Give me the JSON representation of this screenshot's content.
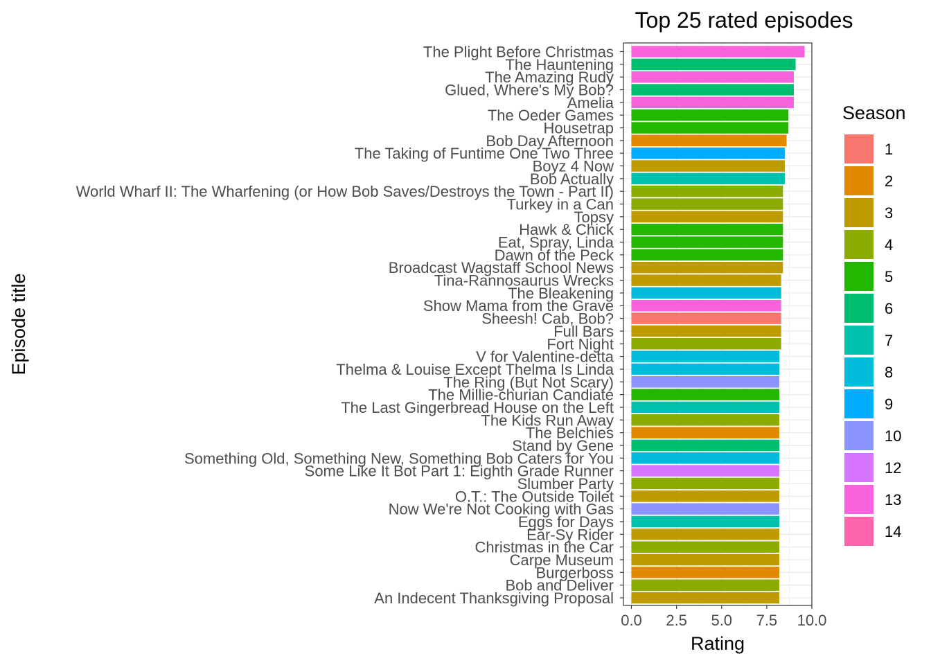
{
  "chart_data": {
    "type": "bar",
    "orientation": "horizontal",
    "title": "Top 25 rated episodes",
    "xlabel": "Rating",
    "ylabel": "Episode title",
    "xlim": [
      0,
      10
    ],
    "x_ticks": [
      "0.0",
      "2.5",
      "5.0",
      "7.5",
      "10.0"
    ],
    "grid": true,
    "legend_title": "Season",
    "legend_position": "right",
    "seasons": [
      "1",
      "2",
      "3",
      "4",
      "5",
      "6",
      "7",
      "8",
      "9",
      "10",
      "12",
      "13",
      "14"
    ],
    "season_colors": [
      "#F8766D",
      "#E18A00",
      "#BE9C00",
      "#8CAB00",
      "#24B700",
      "#00BE70",
      "#00C1AB",
      "#00BBDA",
      "#00ACFC",
      "#8B93FF",
      "#D575FE",
      "#F962DD",
      "#FF65AC"
    ],
    "bars": [
      {
        "title": "The Plight Before Christmas",
        "rating": 9.6,
        "season": "13"
      },
      {
        "title": "The Hauntening",
        "rating": 9.1,
        "season": "6"
      },
      {
        "title": "The Amazing Rudy",
        "rating": 9.0,
        "season": "13"
      },
      {
        "title": "Glued, Where's My Bob?",
        "rating": 9.0,
        "season": "6"
      },
      {
        "title": "Amelia",
        "rating": 9.0,
        "season": "13"
      },
      {
        "title": "The Oeder Games",
        "rating": 8.7,
        "season": "5"
      },
      {
        "title": "Housetrap",
        "rating": 8.7,
        "season": "5"
      },
      {
        "title": "Bob Day Afternoon",
        "rating": 8.6,
        "season": "2"
      },
      {
        "title": "The Taking of Funtime One Two Three",
        "rating": 8.5,
        "season": "9"
      },
      {
        "title": "Boyz 4 Now",
        "rating": 8.5,
        "season": "3"
      },
      {
        "title": "Bob Actually",
        "rating": 8.5,
        "season": "7"
      },
      {
        "title": "World Wharf II: The Wharfening (or How Bob Saves/Destroys the Town - Part II)",
        "rating": 8.4,
        "season": "4"
      },
      {
        "title": "Turkey in a Can",
        "rating": 8.4,
        "season": "4"
      },
      {
        "title": "Topsy",
        "rating": 8.4,
        "season": "3"
      },
      {
        "title": "Hawk & Chick",
        "rating": 8.4,
        "season": "5"
      },
      {
        "title": "Eat, Spray, Linda",
        "rating": 8.4,
        "season": "5"
      },
      {
        "title": "Dawn of the Peck",
        "rating": 8.4,
        "season": "5"
      },
      {
        "title": "Broadcast Wagstaff School News",
        "rating": 8.4,
        "season": "3"
      },
      {
        "title": "Tina-Rannosaurus Wrecks",
        "rating": 8.3,
        "season": "3"
      },
      {
        "title": "The Bleakening",
        "rating": 8.3,
        "season": "8"
      },
      {
        "title": "Show Mama from the Grave",
        "rating": 8.3,
        "season": "13"
      },
      {
        "title": "Sheesh! Cab, Bob?",
        "rating": 8.3,
        "season": "1"
      },
      {
        "title": "Full Bars",
        "rating": 8.3,
        "season": "3"
      },
      {
        "title": "Fort Night",
        "rating": 8.3,
        "season": "4"
      },
      {
        "title": "V for Valentine-detta",
        "rating": 8.2,
        "season": "8"
      },
      {
        "title": "Thelma & Louise Except Thelma Is Linda",
        "rating": 8.2,
        "season": "8"
      },
      {
        "title": "The Ring (But Not Scary)",
        "rating": 8.2,
        "season": "10"
      },
      {
        "title": "The Millie-churian Candiate",
        "rating": 8.2,
        "season": "5"
      },
      {
        "title": "The Last Gingerbread House on the Left",
        "rating": 8.2,
        "season": "7"
      },
      {
        "title": "The Kids Run Away",
        "rating": 8.2,
        "season": "4"
      },
      {
        "title": "The Belchies",
        "rating": 8.2,
        "season": "2"
      },
      {
        "title": "Stand by Gene",
        "rating": 8.2,
        "season": "6"
      },
      {
        "title": "Something Old, Something New, Something Bob Caters for You",
        "rating": 8.2,
        "season": "8"
      },
      {
        "title": "Some Like It Bot Part 1: Eighth Grade Runner",
        "rating": 8.2,
        "season": "12"
      },
      {
        "title": "Slumber Party",
        "rating": 8.2,
        "season": "4"
      },
      {
        "title": "O.T.: The Outside Toilet",
        "rating": 8.2,
        "season": "3"
      },
      {
        "title": "Now We're Not Cooking with Gas",
        "rating": 8.2,
        "season": "10"
      },
      {
        "title": "Eggs for Days",
        "rating": 8.2,
        "season": "7"
      },
      {
        "title": "Ear-Sy Rider",
        "rating": 8.2,
        "season": "3"
      },
      {
        "title": "Christmas in the Car",
        "rating": 8.2,
        "season": "4"
      },
      {
        "title": "Carpe Museum",
        "rating": 8.2,
        "season": "3"
      },
      {
        "title": "Burgerboss",
        "rating": 8.2,
        "season": "2"
      },
      {
        "title": "Bob and Deliver",
        "rating": 8.2,
        "season": "4"
      },
      {
        "title": "An Indecent Thanksgiving Proposal",
        "rating": 8.2,
        "season": "3"
      }
    ]
  }
}
